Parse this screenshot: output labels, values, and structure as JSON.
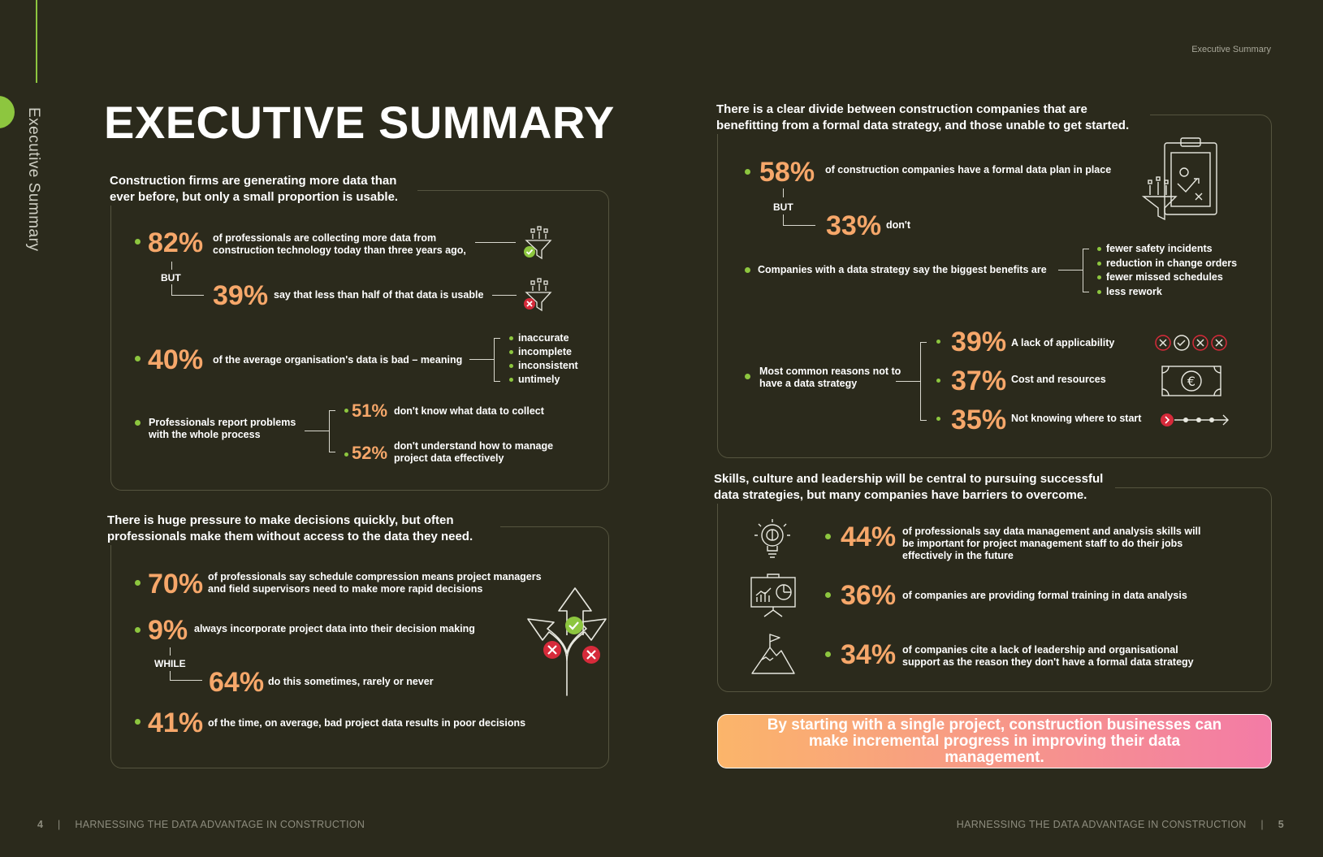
{
  "sidebar_label": "Executive Summary",
  "running_head": "Executive Summary",
  "title": "EXECUTIVE SUMMARY",
  "s1": {
    "heading": "Construction firms are generating more data than ever before, but only a small proportion is usable.",
    "a_pct": "82%",
    "a_text": "of professionals are collecting more data from construction technology today than three years ago,",
    "but": "BUT",
    "b_pct": "39%",
    "b_text": "say that less than half of that data is usable",
    "c_pct": "40%",
    "c_text": "of the average organisation's data is bad – meaning",
    "c_items": [
      "inaccurate",
      "incomplete",
      "inconsistent",
      "untimely"
    ],
    "d_text": "Professionals report problems with the whole process",
    "d1_pct": "51%",
    "d1_text": "don't know what data to collect",
    "d2_pct": "52%",
    "d2_text": "don't understand how to manage project data effectively"
  },
  "s2": {
    "heading": "There is huge pressure to make decisions quickly, but often professionals make them without access to the data they need.",
    "a_pct": "70%",
    "a_text": "of professionals say schedule compression means project managers and field supervisors need to make more rapid decisions",
    "b_pct": "9%",
    "b_text": "always incorporate project data into their decision making",
    "while": "WHILE",
    "c_pct": "64%",
    "c_text": "do this sometimes, rarely or never",
    "d_pct": "41%",
    "d_text": "of the time, on average, bad project data results in poor decisions"
  },
  "s3": {
    "heading": "There is a clear divide between construction companies that are benefitting from a formal data strategy, and those unable to get started.",
    "a_pct": "58%",
    "a_text": "of construction companies have a formal data plan in place",
    "but": "BUT",
    "b_pct": "33%",
    "b_text": "don't",
    "c_text": "Companies with a data strategy say the biggest benefits are",
    "c_items": [
      "fewer safety incidents",
      "reduction in change orders",
      "fewer missed schedules",
      "less rework"
    ],
    "d_text": "Most common reasons not to have a data strategy",
    "r1_pct": "39%",
    "r1_text": "A lack of applicability",
    "r2_pct": "37%",
    "r2_text": "Cost and resources",
    "r3_pct": "35%",
    "r3_text": "Not knowing where to start"
  },
  "s4": {
    "heading": "Skills, culture and leadership will be central to pursuing successful data strategies, but many companies have barriers to overcome.",
    "a_pct": "44%",
    "a_text": "of professionals say data management and analysis skills will be important for project management staff to do their jobs effectively in the future",
    "b_pct": "36%",
    "b_text": "of companies are providing formal training in data analysis",
    "c_pct": "34%",
    "c_text": "of companies cite a lack of leadership and organisational support as the reason they don't have a formal data strategy"
  },
  "banner": "By starting with a single project, construction businesses can make incremental progress in improving their data management.",
  "footer_left_page": "4",
  "footer_left_text": "HARNESSING THE DATA ADVANTAGE IN CONSTRUCTION",
  "footer_right_text": "HARNESSING THE DATA ADVANTAGE IN CONSTRUCTION",
  "footer_right_page": "5",
  "euro_symbol": "€",
  "colors": {
    "accent": "#8dc63f",
    "percent": "#f6a76a",
    "background": "#2b2a1c"
  }
}
